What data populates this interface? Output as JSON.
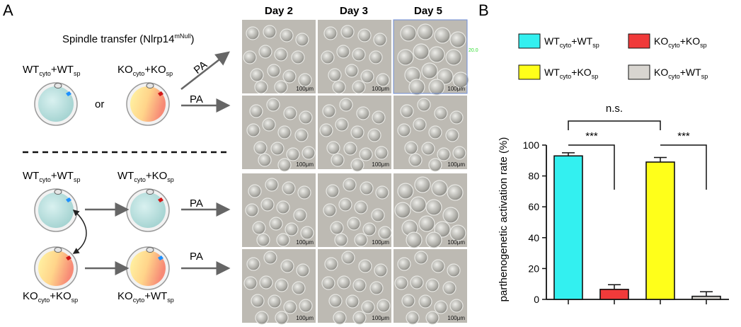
{
  "panel_a": {
    "letter": "A",
    "title": {
      "main": "Spindle transfer (Nlrp14",
      "sup": "mNull",
      "close": ")"
    },
    "genotype_labels": {
      "wt_wt": {
        "a": "WT",
        "a_sub": "cyto",
        "b": "+WT",
        "b_sub": "sp"
      },
      "ko_ko": {
        "a": "KO",
        "a_sub": "cyto",
        "b": "+KO",
        "b_sub": "sp"
      },
      "wt_ko": {
        "a": "WT",
        "a_sub": "cyto",
        "b": "+KO",
        "b_sub": "sp"
      },
      "ko_wt": {
        "a": "KO",
        "a_sub": "cyto",
        "b": "+WT",
        "b_sub": "sp"
      }
    },
    "or_label": "or",
    "arrow_label": "PA",
    "day_headers": [
      "Day 2",
      "Day 3",
      "Day 5"
    ],
    "scale_bar": "100μm",
    "annotation": "20.0"
  },
  "panel_b": {
    "letter": "B",
    "legend": [
      {
        "a": "WT",
        "a_sub": "cyto",
        "b": "+WT",
        "b_sub": "sp",
        "color": "#33f0f0"
      },
      {
        "a": "KO",
        "a_sub": "cyto",
        "b": "+KO",
        "b_sub": "sp",
        "color": "#f03a3a"
      },
      {
        "a": "WT",
        "a_sub": "cyto",
        "b": "+KO",
        "b_sub": "sp",
        "color": "#ffff1a"
      },
      {
        "a": "KO",
        "a_sub": "cyto",
        "b": "+WT",
        "b_sub": "sp",
        "color": "#d8d5d0"
      }
    ],
    "significance": {
      "top": "n.s.",
      "left": "***",
      "right": "***"
    }
  },
  "chart_data": {
    "type": "bar",
    "categories": [
      "WTcyto+WTsp",
      "KOcyto+KOsp",
      "WTcyto+KOsp",
      "KOcyto+WTsp"
    ],
    "values": [
      93,
      6.5,
      89,
      2
    ],
    "errors": [
      2,
      3,
      3,
      3
    ],
    "colors": [
      "#33f0f0",
      "#f03a3a",
      "#ffff1a",
      "#d8d5d0"
    ],
    "ylabel": "parthenogenetic activation rate (%)",
    "ylim": [
      0,
      100
    ],
    "yticks": [
      0,
      20,
      40,
      60,
      80,
      100
    ]
  }
}
